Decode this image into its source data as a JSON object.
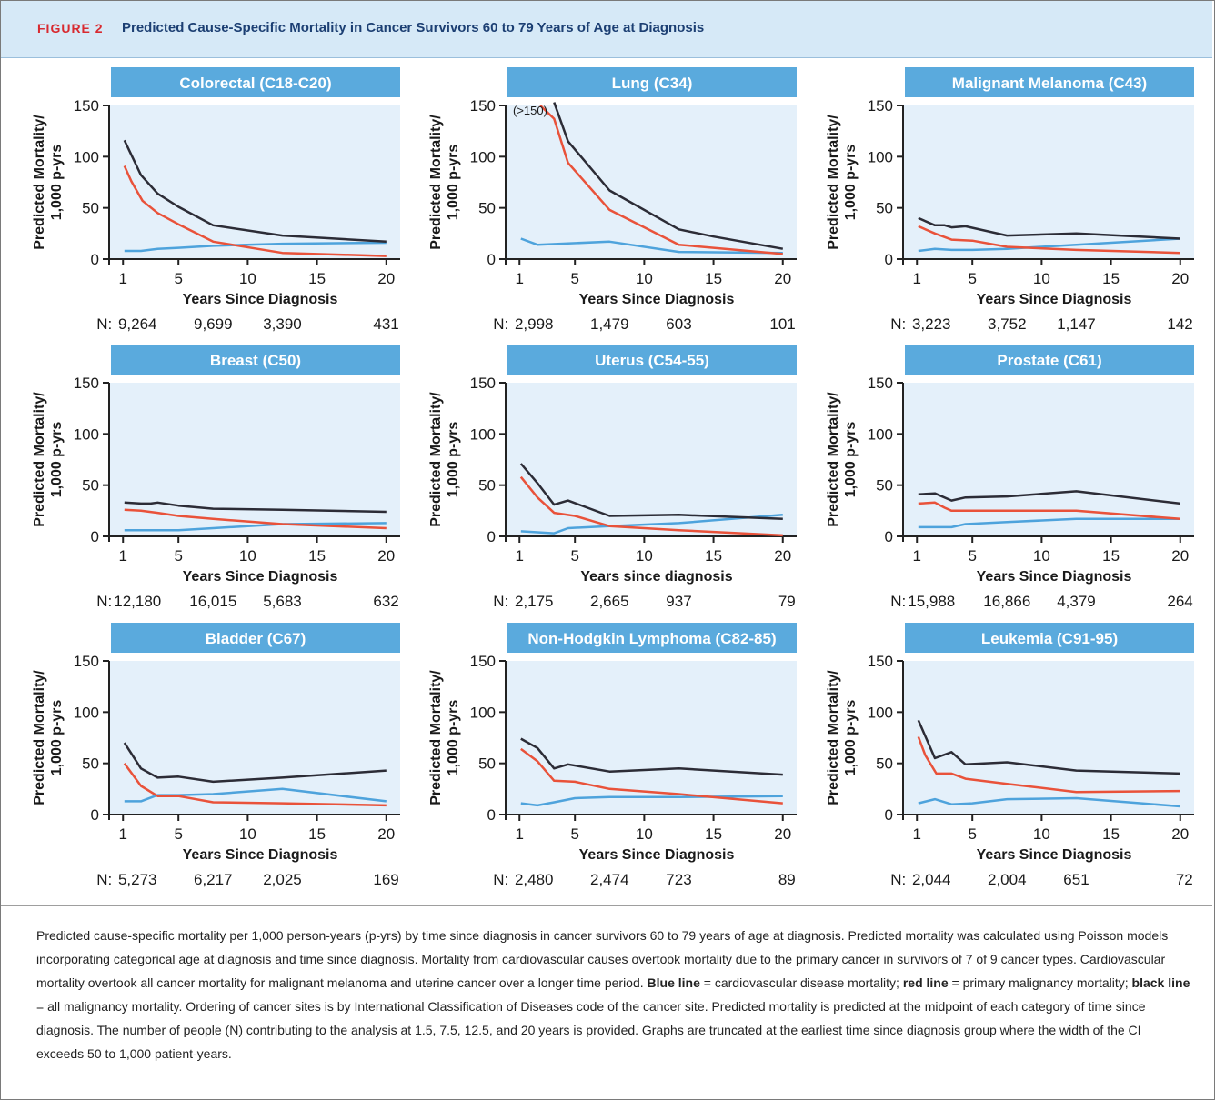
{
  "header": {
    "figure_label": "FIGURE 2",
    "title": "Predicted Cause-Specific Mortality in Cancer Survivors 60 to 79 Years of Age at Diagnosis"
  },
  "colors": {
    "cardiovascular": "#4ea3dc",
    "primary": "#e9523a",
    "all": "#2c2c36",
    "panel_title_bg": "#5aaadd",
    "plot_bg": "#e4f0fa"
  },
  "axis": {
    "ylabel_line1": "Predicted Mortality/",
    "ylabel_line2": "1,000 p-yrs",
    "yticks": [
      "0",
      "50",
      "100",
      "150"
    ],
    "xticks": [
      "1",
      "5",
      "10",
      "15",
      "20"
    ],
    "n_prefix": "N:"
  },
  "chart_data": [
    {
      "type": "line",
      "title": "Colorectal (C18-C20)",
      "xlabel": "Years Since Diagnosis",
      "ylabel": "Predicted Mortality/ 1,000 p-yrs",
      "xlim": [
        0,
        21
      ],
      "ylim": [
        0,
        150
      ],
      "n": [
        "9,264",
        "9,699",
        "3,390",
        "431"
      ],
      "series": [
        {
          "key": "cardiovascular",
          "x": [
            1.1,
            2.3,
            3.5,
            5,
            7.5,
            12.5,
            20
          ],
          "y": [
            8,
            8,
            10,
            11,
            13,
            15,
            16
          ]
        },
        {
          "key": "primary",
          "x": [
            1.1,
            1.6,
            2.4,
            3.5,
            5,
            7.5,
            12.5,
            20
          ],
          "y": [
            91,
            76,
            57,
            45,
            34,
            17,
            6,
            3
          ]
        },
        {
          "key": "all",
          "x": [
            1.1,
            2.3,
            3.5,
            5,
            7.5,
            12.5,
            20
          ],
          "y": [
            116,
            82,
            64,
            51,
            33,
            23,
            17
          ]
        }
      ]
    },
    {
      "type": "line",
      "title": "Lung (C34)",
      "xlabel": "Years Since Diagnosis",
      "ylabel": "Predicted Mortality/ 1,000 p-yrs",
      "xlim": [
        0,
        21
      ],
      "ylim": [
        0,
        150
      ],
      "n": [
        "2,998",
        "1,479",
        "603",
        "101"
      ],
      "annotation": "(>150)",
      "series": [
        {
          "key": "cardiovascular",
          "x": [
            1.1,
            2.3,
            7.5,
            12.5,
            20
          ],
          "y": [
            20,
            14,
            17,
            7,
            6
          ]
        },
        {
          "key": "primary",
          "x": [
            2.5,
            3.5,
            4.5,
            7.5,
            12.5,
            20
          ],
          "y": [
            150,
            137,
            94,
            48,
            14,
            5
          ]
        },
        {
          "key": "all",
          "x": [
            3.5,
            4.5,
            7.5,
            12.5,
            15,
            20
          ],
          "y": [
            153,
            115,
            67,
            29,
            22,
            10
          ]
        }
      ]
    },
    {
      "type": "line",
      "title": "Malignant Melanoma (C43)",
      "xlabel": "Years Since Diagnosis",
      "ylabel": "Predicted Mortality/ 1,000 p-yrs",
      "xlim": [
        0,
        21
      ],
      "ylim": [
        0,
        150
      ],
      "n": [
        "3,223",
        "3,752",
        "1,147",
        "142"
      ],
      "series": [
        {
          "key": "cardiovascular",
          "x": [
            1.1,
            2.3,
            3.5,
            5,
            7.5,
            12.5,
            20
          ],
          "y": [
            8,
            10,
            9,
            9,
            10,
            14,
            20
          ]
        },
        {
          "key": "primary",
          "x": [
            1.1,
            2.3,
            3.5,
            5,
            7.5,
            12.5,
            20
          ],
          "y": [
            32,
            25,
            19,
            18,
            12,
            9,
            6
          ]
        },
        {
          "key": "all",
          "x": [
            1.1,
            2.3,
            3,
            3.5,
            4.5,
            7.5,
            12.5,
            20
          ],
          "y": [
            40,
            33,
            33,
            31,
            32,
            23,
            25,
            20
          ]
        }
      ]
    },
    {
      "type": "line",
      "title": "Breast (C50)",
      "xlabel": "Years Since Diagnosis",
      "ylabel": "Predicted Mortality/ 1,000 p-yrs",
      "xlim": [
        0,
        21
      ],
      "ylim": [
        0,
        150
      ],
      "n": [
        "12,180",
        "16,015",
        "5,683",
        "632"
      ],
      "series": [
        {
          "key": "cardiovascular",
          "x": [
            1.1,
            2.3,
            3.5,
            5,
            7.5,
            12.5,
            20
          ],
          "y": [
            6,
            6,
            6,
            6,
            8,
            12,
            13
          ]
        },
        {
          "key": "primary",
          "x": [
            1.1,
            2.3,
            3.5,
            5,
            7.5,
            12.5,
            20
          ],
          "y": [
            26,
            25,
            23,
            20,
            17,
            12,
            8
          ]
        },
        {
          "key": "all",
          "x": [
            1.1,
            2.3,
            3,
            3.5,
            5,
            7.5,
            12.5,
            20
          ],
          "y": [
            33,
            32,
            32,
            33,
            30,
            27,
            26,
            24
          ]
        }
      ]
    },
    {
      "type": "line",
      "title": "Uterus (C54-55)",
      "xlabel": "Years since diagnosis",
      "ylabel": "Predicted Mortality/ 1,000 p-yrs",
      "xlim": [
        0,
        21
      ],
      "ylim": [
        0,
        150
      ],
      "n": [
        "2,175",
        "2,665",
        "937",
        "79"
      ],
      "series": [
        {
          "key": "cardiovascular",
          "x": [
            1.1,
            2.3,
            3.5,
            4.5,
            7.5,
            12.5,
            20
          ],
          "y": [
            5,
            4,
            3,
            8,
            10,
            13,
            21
          ]
        },
        {
          "key": "primary",
          "x": [
            1.1,
            2.3,
            3.5,
            5,
            7.5,
            12.5,
            20
          ],
          "y": [
            58,
            38,
            23,
            20,
            10,
            6,
            1
          ]
        },
        {
          "key": "all",
          "x": [
            1.1,
            2.3,
            3.5,
            4.5,
            7.5,
            12.5,
            20
          ],
          "y": [
            71,
            52,
            31,
            35,
            20,
            21,
            17
          ]
        }
      ]
    },
    {
      "type": "line",
      "title": "Prostate (C61)",
      "xlabel": "Years Since Diagnosis",
      "ylabel": "Predicted Mortality/ 1,000 p-yrs",
      "xlim": [
        0,
        21
      ],
      "ylim": [
        0,
        150
      ],
      "n": [
        "15,988",
        "16,866",
        "4,379",
        "264"
      ],
      "series": [
        {
          "key": "cardiovascular",
          "x": [
            1.1,
            2.3,
            3.5,
            4.5,
            7.5,
            12.5,
            20
          ],
          "y": [
            9,
            9,
            9,
            12,
            14,
            17,
            17
          ]
        },
        {
          "key": "primary",
          "x": [
            1.1,
            2.3,
            3,
            3.5,
            7.5,
            12.5,
            20
          ],
          "y": [
            32,
            33,
            28,
            25,
            25,
            25,
            17
          ]
        },
        {
          "key": "all",
          "x": [
            1.1,
            2.3,
            3.5,
            4.5,
            7.5,
            12.5,
            20
          ],
          "y": [
            41,
            42,
            35,
            38,
            39,
            44,
            32
          ]
        }
      ]
    },
    {
      "type": "line",
      "title": "Bladder (C67)",
      "xlabel": "Years Since Diagnosis",
      "ylabel": "Predicted Mortality/ 1,000 p-yrs",
      "xlim": [
        0,
        21
      ],
      "ylim": [
        0,
        150
      ],
      "n": [
        "5,273",
        "6,217",
        "2,025",
        "169"
      ],
      "series": [
        {
          "key": "cardiovascular",
          "x": [
            1.1,
            2.3,
            3.5,
            5,
            7.5,
            12.5,
            20
          ],
          "y": [
            13,
            13,
            19,
            19,
            20,
            25,
            13
          ]
        },
        {
          "key": "primary",
          "x": [
            1.1,
            2.3,
            3.5,
            5,
            7.5,
            12.5,
            20
          ],
          "y": [
            50,
            28,
            18,
            18,
            12,
            11,
            9
          ]
        },
        {
          "key": "all",
          "x": [
            1.1,
            2.3,
            3.5,
            5,
            7.5,
            12.5,
            20
          ],
          "y": [
            70,
            45,
            36,
            37,
            32,
            36,
            43
          ]
        }
      ]
    },
    {
      "type": "line",
      "title": "Non-Hodgkin Lymphoma (C82-85)",
      "xlabel": "Years Since Diagnosis",
      "ylabel": "Predicted Mortality/ 1,000 p-yrs",
      "xlim": [
        0,
        21
      ],
      "ylim": [
        0,
        150
      ],
      "n": [
        "2,480",
        "2,474",
        "723",
        "89"
      ],
      "series": [
        {
          "key": "cardiovascular",
          "x": [
            1.1,
            2.3,
            3.5,
            5,
            7.5,
            12.5,
            20
          ],
          "y": [
            11,
            9,
            12,
            16,
            17,
            17,
            18
          ]
        },
        {
          "key": "primary",
          "x": [
            1.1,
            2.3,
            3.5,
            5,
            7.5,
            12.5,
            20
          ],
          "y": [
            64,
            52,
            33,
            32,
            25,
            20,
            11
          ]
        },
        {
          "key": "all",
          "x": [
            1.1,
            2.3,
            3.5,
            4.5,
            7.5,
            12.5,
            20
          ],
          "y": [
            74,
            65,
            45,
            49,
            42,
            45,
            39
          ]
        }
      ]
    },
    {
      "type": "line",
      "title": "Leukemia (C91-95)",
      "xlabel": "Years Since Diagnosis",
      "ylabel": "Predicted Mortality/ 1,000 p-yrs",
      "xlim": [
        0,
        21
      ],
      "ylim": [
        0,
        150
      ],
      "n": [
        "2,044",
        "2,004",
        "651",
        "72"
      ],
      "series": [
        {
          "key": "cardiovascular",
          "x": [
            1.1,
            2.3,
            3.5,
            5,
            7.5,
            12.5,
            20
          ],
          "y": [
            11,
            15,
            10,
            11,
            15,
            16,
            8
          ]
        },
        {
          "key": "primary",
          "x": [
            1.1,
            1.6,
            2.4,
            3.5,
            4.5,
            7.5,
            12.5,
            20
          ],
          "y": [
            76,
            58,
            40,
            40,
            35,
            30,
            22,
            23
          ]
        },
        {
          "key": "all",
          "x": [
            1.1,
            2.3,
            3.5,
            4.5,
            7.5,
            12.5,
            20
          ],
          "y": [
            92,
            55,
            61,
            49,
            51,
            43,
            40
          ]
        }
      ]
    }
  ],
  "caption": {
    "text1": "Predicted cause-specific mortality per 1,000 person-years (p-yrs) by time since diagnosis in cancer survivors 60 to 79 years of age at diagnosis. Predicted mortality was calculated using Poisson models incorporating categorical age at diagnosis and time since diagnosis. Mortality from cardiovascular causes overtook mortality due to the primary cancer in survivors of 7 of 9 cancer types. Cardiovascular mortality overtook all cancer mortality for malignant melanoma and uterine cancer over a longer time period. ",
    "blue_label": "Blue line",
    "blue_text": " = cardiovascular disease mortality; ",
    "red_label": "red line",
    "red_text": " = primary malignancy mortality; ",
    "black_label": "black line",
    "black_text": " = all malignancy mortality. Ordering of cancer sites is by International Classification of Diseases code of the cancer site. Predicted mortality is predicted at the midpoint of each category of time since diagnosis. The number of people (N) contributing to the analysis at 1.5, 7.5, 12.5, and 20 years is provided. Graphs are truncated at the earliest time since diagnosis group where the width of the CI exceeds 50 to 1,000 patient-years."
  }
}
